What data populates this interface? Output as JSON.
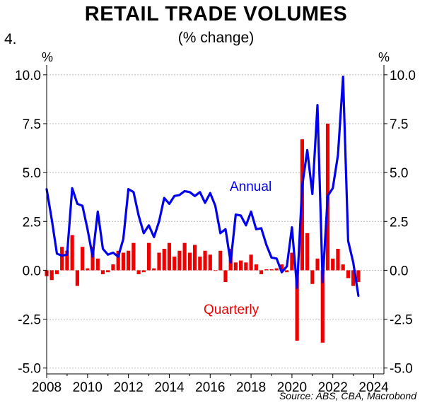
{
  "figure_number": "4.",
  "title": "RETAIL TRADE VOLUMES",
  "subtitle": "(% change)",
  "source": "Source: ABS, CBA, Macrobond",
  "colors": {
    "annual": "#0000ee",
    "quarterly": "#ee0000",
    "grid": "#bbbbbb"
  },
  "chart_data": {
    "type": "bar+line",
    "y_unit_left": "%",
    "y_unit_right": "%",
    "ylim": [
      -5.3,
      10.5
    ],
    "y_ticks": [
      10.0,
      7.5,
      5.0,
      2.5,
      0.0,
      -2.5,
      -5.0
    ],
    "y_tick_labels": [
      "10.0",
      "7.5",
      "5.0",
      "2.5",
      "0.0",
      "-2.5",
      "-5.0"
    ],
    "xlim": [
      2008,
      2024.5
    ],
    "x_ticks": [
      2008,
      2010,
      2012,
      2014,
      2016,
      2018,
      2020,
      2022,
      2024
    ],
    "x_tick_labels": [
      "2008",
      "2010",
      "2012",
      "2014",
      "2016",
      "2018",
      "2020",
      "2022",
      "2024"
    ],
    "grid": true,
    "series": [
      {
        "name": "Annual",
        "kind": "line",
        "x": [
          2008.0,
          2008.25,
          2008.5,
          2008.75,
          2009.0,
          2009.25,
          2009.5,
          2009.75,
          2010.0,
          2010.25,
          2010.5,
          2010.75,
          2011.0,
          2011.25,
          2011.5,
          2011.75,
          2012.0,
          2012.25,
          2012.5,
          2012.75,
          2013.0,
          2013.25,
          2013.5,
          2013.75,
          2014.0,
          2014.25,
          2014.5,
          2014.75,
          2015.0,
          2015.25,
          2015.5,
          2015.75,
          2016.0,
          2016.25,
          2016.5,
          2016.75,
          2017.0,
          2017.25,
          2017.5,
          2017.75,
          2018.0,
          2018.25,
          2018.5,
          2018.75,
          2019.0,
          2019.25,
          2019.5,
          2019.75,
          2020.0,
          2020.25,
          2020.5,
          2020.75,
          2021.0,
          2021.25,
          2021.5,
          2021.75,
          2022.0,
          2022.25,
          2022.5,
          2022.75,
          2023.0,
          2023.25
        ],
        "values": [
          4.15,
          2.6,
          0.85,
          0.75,
          0.8,
          4.2,
          3.4,
          3.3,
          2.1,
          0.7,
          3.0,
          1.1,
          0.8,
          0.9,
          0.7,
          1.6,
          4.15,
          4.0,
          2.8,
          1.9,
          2.3,
          1.7,
          2.5,
          3.7,
          3.4,
          3.8,
          3.85,
          4.05,
          4.0,
          3.8,
          4.0,
          3.45,
          3.95,
          3.3,
          1.9,
          2.1,
          0.4,
          2.85,
          2.8,
          2.3,
          3.0,
          2.1,
          2.15,
          1.3,
          0.65,
          0.6,
          -0.1,
          0.2,
          2.2,
          -0.9,
          4.3,
          6.15,
          3.9,
          8.45,
          -0.6,
          3.8,
          4.2,
          5.9,
          9.9,
          1.5,
          0.4,
          -1.3
        ]
      },
      {
        "name": "Quarterly",
        "kind": "bar",
        "x": [
          2008.0,
          2008.25,
          2008.5,
          2008.75,
          2009.0,
          2009.25,
          2009.5,
          2009.75,
          2010.0,
          2010.25,
          2010.5,
          2010.75,
          2011.0,
          2011.25,
          2011.5,
          2011.75,
          2012.0,
          2012.25,
          2012.5,
          2012.75,
          2013.0,
          2013.25,
          2013.5,
          2013.75,
          2014.0,
          2014.25,
          2014.5,
          2014.75,
          2015.0,
          2015.25,
          2015.5,
          2015.75,
          2016.0,
          2016.25,
          2016.5,
          2016.75,
          2017.0,
          2017.25,
          2017.5,
          2017.75,
          2018.0,
          2018.25,
          2018.5,
          2018.75,
          2019.0,
          2019.25,
          2019.5,
          2019.75,
          2020.0,
          2020.25,
          2020.5,
          2020.75,
          2021.0,
          2021.25,
          2021.5,
          2021.75,
          2022.0,
          2022.25,
          2022.5,
          2022.75,
          2023.0,
          2023.25
        ],
        "values": [
          -0.3,
          -0.5,
          -0.2,
          1.2,
          1.0,
          1.8,
          -0.8,
          1.2,
          0.1,
          1.2,
          0.6,
          -0.2,
          -0.1,
          0.3,
          1.0,
          0.9,
          1.0,
          1.4,
          -0.2,
          -0.1,
          1.4,
          0.1,
          0.9,
          1.1,
          1.4,
          0.7,
          1.0,
          1.4,
          0.9,
          1.3,
          0.7,
          1.0,
          0.8,
          0.0,
          1.0,
          -0.6,
          1.1,
          0.4,
          0.5,
          0.4,
          0.8,
          0.3,
          -0.2,
          0.05,
          0.05,
          0.1,
          0.3,
          -0.1,
          0.9,
          -3.6,
          6.7,
          1.9,
          -0.7,
          0.6,
          -3.7,
          7.5,
          0.6,
          1.1,
          0.3,
          -0.4,
          -0.8,
          -0.6
        ]
      }
    ],
    "annotations": [
      {
        "text": "Annual",
        "series": "Annual"
      },
      {
        "text": "Quarterly",
        "series": "Quarterly"
      }
    ]
  }
}
